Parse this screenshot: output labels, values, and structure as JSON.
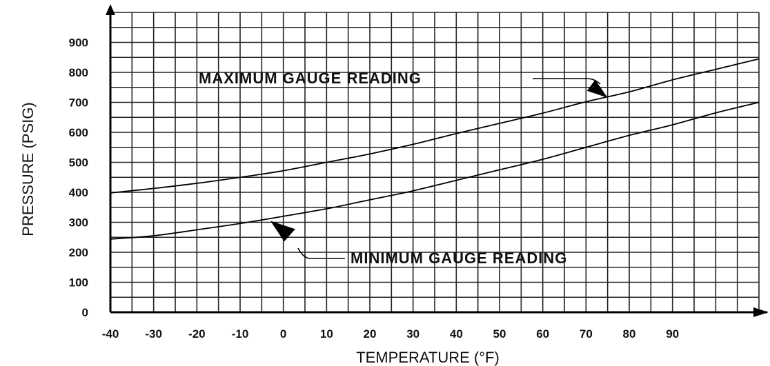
{
  "chart_data": {
    "type": "line",
    "title": "",
    "xlabel": "TEMPERATURE (°F)",
    "ylabel": "PRESSURE (PSIG)",
    "xlim": [
      -40,
      110
    ],
    "ylim": [
      0,
      1000
    ],
    "xticks": [
      "-40",
      "-30",
      "-20",
      "-10",
      "0",
      "10",
      "20",
      "30",
      "40",
      "50",
      "60",
      "70",
      "80",
      "90"
    ],
    "yticks": [
      "900",
      "800",
      "700",
      "600",
      "500",
      "400",
      "300",
      "200",
      "100",
      "0"
    ],
    "grid": true,
    "series": [
      {
        "name": "MAXIMUM GAUGE READING",
        "x": [
          -40,
          -30,
          -20,
          -10,
          0,
          10,
          20,
          30,
          40,
          50,
          60,
          70,
          80,
          90,
          100,
          110
        ],
        "values": [
          398,
          413,
          430,
          450,
          472,
          500,
          528,
          560,
          596,
          630,
          664,
          702,
          735,
          775,
          810,
          845
        ]
      },
      {
        "name": "MINIMUM GAUGE READING",
        "x": [
          -40,
          -30,
          -20,
          -10,
          0,
          10,
          20,
          30,
          40,
          50,
          60,
          70,
          80,
          90,
          100,
          110
        ],
        "values": [
          244,
          255,
          275,
          296,
          320,
          345,
          375,
          405,
          440,
          475,
          510,
          550,
          590,
          625,
          665,
          700
        ]
      }
    ],
    "annotations": [
      {
        "text": "MAXIMUM GAUGE READING",
        "x": 75,
        "y": 720
      },
      {
        "text": "MINIMUM GAUGE READING",
        "x": -3,
        "y": 305
      }
    ]
  }
}
